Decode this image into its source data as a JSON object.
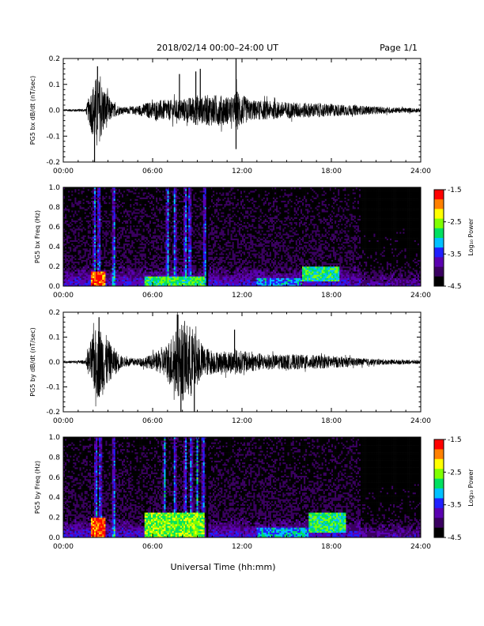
{
  "header": {
    "title": "2018/02/14  00:00–24:00 UT",
    "page_label": "Page 1/1"
  },
  "x_axis": {
    "title": "Universal Time (hh:mm)",
    "tick_labels": [
      "00:00",
      "06:00",
      "12:00",
      "18:00",
      "24:00"
    ]
  },
  "colorbar": {
    "label": "Log₁₀ Power",
    "tick_labels": [
      "-1.5",
      "-2.5",
      "-3.5",
      "-4.5"
    ],
    "range": [
      -4.5,
      -1.5
    ],
    "colors": [
      "#000000",
      "#3a0060",
      "#5a00b0",
      "#2020ff",
      "#00c0ff",
      "#00e060",
      "#80ff00",
      "#ffff00",
      "#ff8000",
      "#ff0000"
    ]
  },
  "chart_data": [
    {
      "type": "line",
      "ylabel": "PG5 bx dB/dt (nT/sec)",
      "xlim": [
        0,
        24
      ],
      "ylim": [
        -0.2,
        0.2
      ],
      "y_ticks": [
        "0.2",
        "0.1",
        "0.0",
        "-0.1",
        "-0.2"
      ],
      "x_unit": "hours UT",
      "envelope": {
        "x": [
          0,
          1.5,
          1.9,
          2.2,
          2.5,
          2.8,
          3.3,
          4,
          5,
          5.6,
          6.5,
          7.5,
          8.5,
          9.0,
          9.4,
          9.6,
          10.5,
          11.4,
          11.6,
          12.5,
          14,
          16,
          18,
          20,
          22,
          24
        ],
        "amplitude": [
          0.004,
          0.006,
          0.09,
          0.13,
          0.12,
          0.08,
          0.03,
          0.012,
          0.018,
          0.03,
          0.04,
          0.04,
          0.05,
          0.06,
          0.05,
          0.06,
          0.06,
          0.05,
          0.08,
          0.04,
          0.035,
          0.03,
          0.025,
          0.018,
          0.012,
          0.008
        ]
      },
      "spikes": [
        {
          "x": 2.1,
          "y": -0.2
        },
        {
          "x": 2.3,
          "y": 0.17
        },
        {
          "x": 7.8,
          "y": 0.14
        },
        {
          "x": 8.9,
          "y": 0.15
        },
        {
          "x": 9.2,
          "y": 0.16
        },
        {
          "x": 11.6,
          "y": 0.21
        },
        {
          "x": 11.6,
          "y": -0.15
        }
      ]
    },
    {
      "type": "heatmap",
      "ylabel": "PG5 bx Freq (Hz)",
      "xlim": [
        0,
        24
      ],
      "ylim": [
        0,
        1.0
      ],
      "y_ticks": [
        "1.0",
        "0.8",
        "0.6",
        "0.4",
        "0.2",
        "0.0"
      ],
      "z_unit": "log10 power",
      "storm_rows_x": [
        2.0,
        2.3,
        2.6,
        3.0,
        3.5,
        4.0,
        5.0
      ],
      "bright_columns_x": [
        2.1,
        2.4,
        3.4,
        7.0,
        7.5,
        8.2,
        8.5,
        9.5
      ],
      "patches": [
        {
          "x": [
            1.8,
            2.8
          ],
          "f": [
            0.0,
            0.15
          ],
          "z": -1.8
        },
        {
          "x": [
            5.5,
            9.5
          ],
          "f": [
            0.0,
            0.1
          ],
          "z": -2.8
        },
        {
          "x": [
            16.0,
            18.5
          ],
          "f": [
            0.05,
            0.2
          ],
          "z": -2.9
        },
        {
          "x": [
            13.0,
            16.0
          ],
          "f": [
            0.0,
            0.08
          ],
          "z": -3.3
        }
      ],
      "gap_x": 9.6
    },
    {
      "type": "line",
      "ylabel": "PG5 by dB/dt (nT/sec)",
      "xlim": [
        0,
        24
      ],
      "ylim": [
        -0.2,
        0.2
      ],
      "y_ticks": [
        "0.2",
        "0.1",
        "0.0",
        "-0.1",
        "-0.2"
      ],
      "x_unit": "hours UT",
      "envelope": {
        "x": [
          0,
          1.5,
          1.9,
          2.3,
          2.7,
          3.2,
          4,
          5,
          6,
          6.8,
          7.4,
          8,
          8.6,
          9.0,
          9.5,
          10.5,
          11.6,
          12.5,
          14,
          16,
          18,
          20,
          22,
          24
        ],
        "amplitude": [
          0.004,
          0.008,
          0.1,
          0.15,
          0.13,
          0.07,
          0.02,
          0.015,
          0.03,
          0.06,
          0.12,
          0.16,
          0.15,
          0.09,
          0.06,
          0.04,
          0.05,
          0.04,
          0.03,
          0.03,
          0.025,
          0.015,
          0.01,
          0.008
        ]
      },
      "spikes": [
        {
          "x": 2.4,
          "y": 0.18
        },
        {
          "x": 7.7,
          "y": 0.19
        },
        {
          "x": 7.9,
          "y": -0.22
        },
        {
          "x": 8.8,
          "y": -0.2
        },
        {
          "x": 11.5,
          "y": 0.13
        }
      ]
    },
    {
      "type": "heatmap",
      "ylabel": "PG5 by Freq (Hz)",
      "xlim": [
        0,
        24
      ],
      "ylim": [
        0,
        1.0
      ],
      "y_ticks": [
        "1.0",
        "0.8",
        "0.6",
        "0.4",
        "0.2",
        "0.0"
      ],
      "z_unit": "log10 power",
      "storm_rows_x": [
        2.0,
        2.3,
        2.6,
        3.0,
        3.5,
        4.0,
        5.0
      ],
      "bright_columns_x": [
        2.2,
        2.5,
        3.4,
        6.8,
        7.5,
        8.2,
        8.6,
        9.0,
        9.4
      ],
      "patches": [
        {
          "x": [
            1.8,
            2.8
          ],
          "f": [
            0.0,
            0.2
          ],
          "z": -1.8
        },
        {
          "x": [
            5.5,
            9.5
          ],
          "f": [
            0.0,
            0.25
          ],
          "z": -2.6
        },
        {
          "x": [
            16.5,
            19.0
          ],
          "f": [
            0.05,
            0.25
          ],
          "z": -2.8
        },
        {
          "x": [
            13.0,
            16.5
          ],
          "f": [
            0.0,
            0.1
          ],
          "z": -3.2
        }
      ],
      "gap_x": 9.6
    }
  ]
}
